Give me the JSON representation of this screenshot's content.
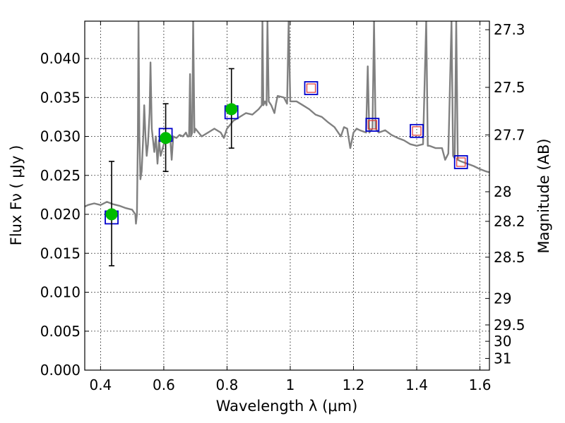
{
  "chart_data": {
    "type": "line",
    "xlabel": "Wavelength  λ (μm)",
    "ylabel": "Flux  Fν  ( μJy )",
    "y2label": "Magnitude (AB)",
    "xlim": [
      0.35,
      1.63
    ],
    "ylim": [
      0.0,
      0.0448
    ],
    "grid": true,
    "x_ticks": [
      0.4,
      0.6,
      0.8,
      1.0,
      1.2,
      1.4,
      1.6
    ],
    "x_tick_labels": [
      "0.4",
      "0.6",
      "0.8",
      "1",
      "1.2",
      "1.4",
      "1.6"
    ],
    "y_ticks": [
      0.0,
      0.005,
      0.01,
      0.015,
      0.02,
      0.025,
      0.03,
      0.035,
      0.04
    ],
    "y_tick_labels": [
      "0.000",
      "0.005",
      "0.010",
      "0.015",
      "0.020",
      "0.025",
      "0.030",
      "0.035",
      "0.040"
    ],
    "mag_ticks": [
      {
        "label": "27.3",
        "flux": 0.0437
      },
      {
        "label": "27.5",
        "flux": 0.0363
      },
      {
        "label": "27.7",
        "flux": 0.0302
      },
      {
        "label": "28",
        "flux": 0.0229
      },
      {
        "label": "28.2",
        "flux": 0.0191
      },
      {
        "label": "28.5",
        "flux": 0.0145
      },
      {
        "label": "29",
        "flux": 0.0092
      },
      {
        "label": "29.5",
        "flux": 0.0058
      },
      {
        "label": "30",
        "flux": 0.0037
      },
      {
        "label": "31",
        "flux": 0.0015
      }
    ],
    "colors": {
      "spectrum": "#808080",
      "observed": "#00bb00",
      "errorbar": "#000000",
      "model_square": "#0000cc",
      "model_inner": "#dd3333"
    },
    "series": [
      {
        "kind": "spectrum",
        "points": [
          [
            0.35,
            0.021
          ],
          [
            0.36,
            0.0212
          ],
          [
            0.38,
            0.0214
          ],
          [
            0.4,
            0.0212
          ],
          [
            0.42,
            0.0216
          ],
          [
            0.44,
            0.0213
          ],
          [
            0.46,
            0.0211
          ],
          [
            0.48,
            0.0208
          ],
          [
            0.5,
            0.0206
          ],
          [
            0.51,
            0.02
          ],
          [
            0.512,
            0.0188
          ],
          [
            0.515,
            0.02
          ],
          [
            0.518,
            0.03
          ],
          [
            0.52,
            0.0448
          ],
          [
            0.523,
            0.03
          ],
          [
            0.526,
            0.0245
          ],
          [
            0.53,
            0.0255
          ],
          [
            0.535,
            0.03
          ],
          [
            0.538,
            0.034
          ],
          [
            0.542,
            0.03
          ],
          [
            0.546,
            0.0275
          ],
          [
            0.55,
            0.029
          ],
          [
            0.555,
            0.033
          ],
          [
            0.558,
            0.0395
          ],
          [
            0.562,
            0.031
          ],
          [
            0.57,
            0.028
          ],
          [
            0.575,
            0.03
          ],
          [
            0.58,
            0.0265
          ],
          [
            0.585,
            0.0295
          ],
          [
            0.59,
            0.0275
          ],
          [
            0.6,
            0.029
          ],
          [
            0.61,
            0.0295
          ],
          [
            0.62,
            0.03
          ],
          [
            0.625,
            0.027
          ],
          [
            0.63,
            0.03
          ],
          [
            0.64,
            0.0298
          ],
          [
            0.65,
            0.0302
          ],
          [
            0.66,
            0.03
          ],
          [
            0.67,
            0.0305
          ],
          [
            0.675,
            0.03
          ],
          [
            0.68,
            0.03
          ],
          [
            0.683,
            0.038
          ],
          [
            0.686,
            0.03
          ],
          [
            0.69,
            0.0305
          ],
          [
            0.693,
            0.0448
          ],
          [
            0.697,
            0.0305
          ],
          [
            0.7,
            0.031
          ],
          [
            0.72,
            0.03
          ],
          [
            0.74,
            0.0305
          ],
          [
            0.76,
            0.031
          ],
          [
            0.78,
            0.0305
          ],
          [
            0.79,
            0.0298
          ],
          [
            0.8,
            0.031
          ],
          [
            0.82,
            0.032
          ],
          [
            0.84,
            0.0325
          ],
          [
            0.86,
            0.033
          ],
          [
            0.88,
            0.0328
          ],
          [
            0.9,
            0.0335
          ],
          [
            0.91,
            0.034
          ],
          [
            0.912,
            0.0448
          ],
          [
            0.915,
            0.034
          ],
          [
            0.92,
            0.0345
          ],
          [
            0.925,
            0.034
          ],
          [
            0.928,
            0.0448
          ],
          [
            0.932,
            0.0345
          ],
          [
            0.94,
            0.034
          ],
          [
            0.95,
            0.033
          ],
          [
            0.955,
            0.0342
          ],
          [
            0.96,
            0.0352
          ],
          [
            0.98,
            0.035
          ],
          [
            0.99,
            0.0342
          ],
          [
            0.995,
            0.0448
          ],
          [
            1.0,
            0.0345
          ],
          [
            1.02,
            0.0345
          ],
          [
            1.04,
            0.034
          ],
          [
            1.06,
            0.0335
          ],
          [
            1.08,
            0.0328
          ],
          [
            1.1,
            0.0325
          ],
          [
            1.12,
            0.0318
          ],
          [
            1.14,
            0.0312
          ],
          [
            1.16,
            0.03
          ],
          [
            1.17,
            0.0312
          ],
          [
            1.18,
            0.031
          ],
          [
            1.19,
            0.0285
          ],
          [
            1.2,
            0.0305
          ],
          [
            1.21,
            0.031
          ],
          [
            1.22,
            0.0308
          ],
          [
            1.24,
            0.0305
          ],
          [
            1.245,
            0.039
          ],
          [
            1.25,
            0.0305
          ],
          [
            1.26,
            0.031
          ],
          [
            1.265,
            0.0448
          ],
          [
            1.27,
            0.031
          ],
          [
            1.28,
            0.0305
          ],
          [
            1.3,
            0.0308
          ],
          [
            1.32,
            0.0302
          ],
          [
            1.34,
            0.0298
          ],
          [
            1.36,
            0.0295
          ],
          [
            1.38,
            0.029
          ],
          [
            1.4,
            0.0288
          ],
          [
            1.42,
            0.029
          ],
          [
            1.43,
            0.0448
          ],
          [
            1.435,
            0.0288
          ],
          [
            1.44,
            0.0288
          ],
          [
            1.46,
            0.0285
          ],
          [
            1.48,
            0.0285
          ],
          [
            1.49,
            0.027
          ],
          [
            1.5,
            0.0278
          ],
          [
            1.51,
            0.0448
          ],
          [
            1.515,
            0.0275
          ],
          [
            1.52,
            0.0272
          ],
          [
            1.525,
            0.0448
          ],
          [
            1.53,
            0.027
          ],
          [
            1.54,
            0.0268
          ],
          [
            1.56,
            0.0265
          ],
          [
            1.58,
            0.0262
          ],
          [
            1.6,
            0.0258
          ],
          [
            1.62,
            0.0255
          ],
          [
            1.63,
            0.0254
          ]
        ]
      },
      {
        "kind": "observed",
        "points": [
          {
            "x": 0.435,
            "y": 0.02,
            "yerr_low": 0.0134,
            "yerr_high": 0.0268
          },
          {
            "x": 0.606,
            "y": 0.0298,
            "yerr_low": 0.0255,
            "yerr_high": 0.0342
          },
          {
            "x": 0.814,
            "y": 0.0335,
            "yerr_low": 0.0285,
            "yerr_high": 0.0387
          }
        ]
      },
      {
        "kind": "model",
        "points": [
          {
            "x": 0.435,
            "y": 0.0196,
            "inner": false
          },
          {
            "x": 0.606,
            "y": 0.0302,
            "inner": false
          },
          {
            "x": 0.814,
            "y": 0.0331,
            "inner": false
          },
          {
            "x": 1.066,
            "y": 0.0362,
            "inner": true
          },
          {
            "x": 1.26,
            "y": 0.0315,
            "inner": true
          },
          {
            "x": 1.4,
            "y": 0.0307,
            "inner": true
          },
          {
            "x": 1.54,
            "y": 0.0267,
            "inner": true
          }
        ]
      }
    ]
  }
}
